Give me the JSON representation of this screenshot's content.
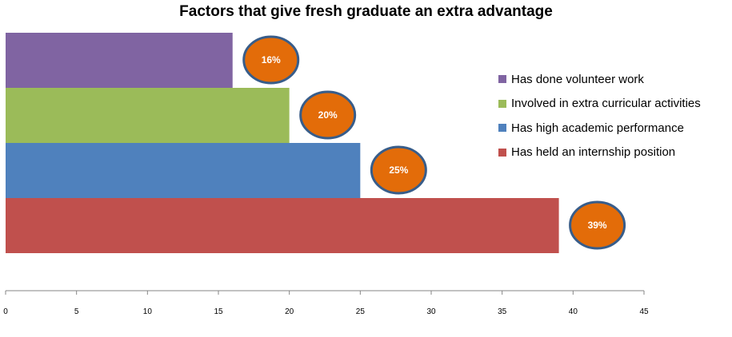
{
  "chart_data": {
    "type": "bar",
    "orientation": "horizontal",
    "title": "Factors that give fresh graduate an extra advantage",
    "categories": [
      "Has done volunteer work",
      "Involved in extra curricular activities",
      "Has high academic performance",
      "Has held an internship position"
    ],
    "values": [
      16,
      20,
      25,
      39
    ],
    "data_labels": [
      "16%",
      "20%",
      "25%",
      "39%"
    ],
    "colors": [
      "#8064a2",
      "#9bbb59",
      "#4f81bd",
      "#c0504d"
    ],
    "label_bubble_color": "#e36c09",
    "label_bubble_border": "#385d8a",
    "xlim": [
      0,
      45
    ],
    "xticks": [
      "0",
      "5",
      "10",
      "15",
      "20",
      "25",
      "30",
      "35",
      "40",
      "45"
    ],
    "grid": false,
    "legend": "right"
  }
}
